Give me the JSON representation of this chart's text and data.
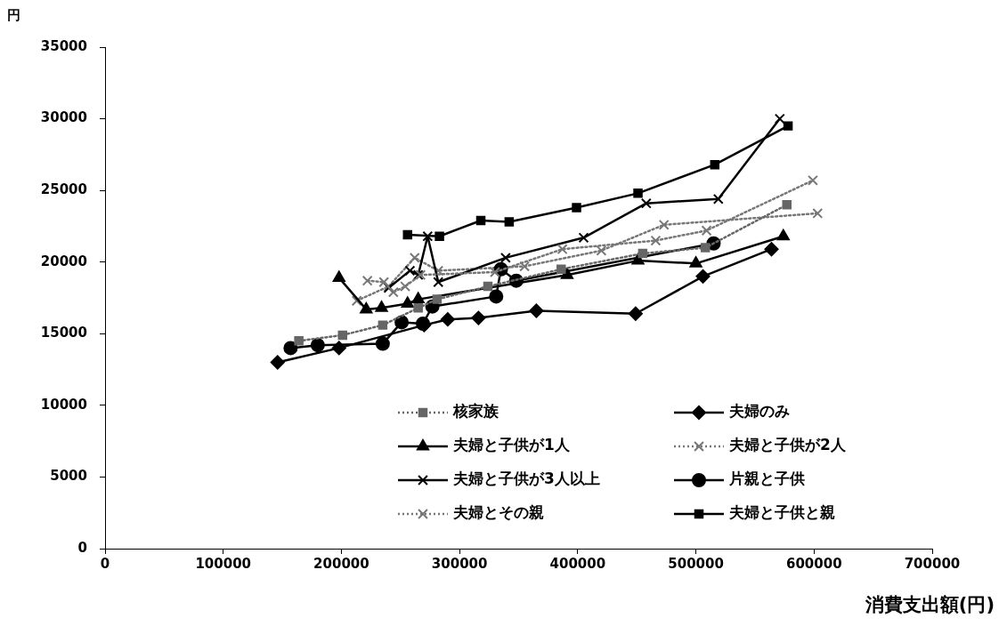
{
  "chart_data": {
    "type": "line",
    "xlabel": "消費支出額(円)",
    "ylabel": "円",
    "xlim": [
      0,
      700000
    ],
    "xticks": [
      0,
      100000,
      200000,
      300000,
      400000,
      500000,
      600000,
      700000
    ],
    "ylim": [
      0,
      35000
    ],
    "yticks": [
      0,
      5000,
      10000,
      15000,
      20000,
      25000,
      30000,
      35000
    ],
    "grid": false,
    "legend": "bottom right",
    "series": [
      {
        "name": "核家族",
        "color": "#666666",
        "marker": "square",
        "line_style": "dotted",
        "x": [
          164000,
          201000,
          235000,
          265000,
          281000,
          324000,
          386000,
          455000,
          508000,
          577000
        ],
        "values": [
          14500,
          14900,
          15600,
          16800,
          17400,
          18300,
          19500,
          20600,
          21000,
          24000
        ]
      },
      {
        "name": "夫婦のみ",
        "color": "#000000",
        "marker": "diamond",
        "line_style": "solid",
        "x": [
          146000,
          198000,
          270000,
          290000,
          316000,
          365000,
          449000,
          506000,
          564000
        ],
        "values": [
          13000,
          14000,
          15600,
          16000,
          16100,
          16600,
          16400,
          19000,
          20900
        ]
      },
      {
        "name": "夫婦と子供が1人",
        "color": "#000000",
        "marker": "triangle",
        "line_style": "solid",
        "x": [
          198000,
          221000,
          234000,
          256000,
          265000,
          391000,
          451000,
          500000,
          574000
        ],
        "values": [
          18900,
          16700,
          16800,
          17100,
          17400,
          19100,
          20100,
          19900,
          21800
        ]
      },
      {
        "name": "夫婦と子供が2人",
        "color": "#777777",
        "marker": "cross",
        "line_style": "dotted",
        "x": [
          222000,
          236000,
          244000,
          254000,
          267000,
          330000,
          387000,
          466000,
          509000,
          599000
        ],
        "values": [
          18700,
          18600,
          17900,
          18300,
          19100,
          19300,
          20900,
          21500,
          22200,
          25700
        ]
      },
      {
        "name": "夫婦と子供が3人以上",
        "color": "#000000",
        "marker": "cross",
        "line_style": "solid",
        "x": [
          240000,
          258000,
          265000,
          273000,
          282000,
          339000,
          405000,
          458000,
          519000,
          571000
        ],
        "values": [
          18200,
          19400,
          19100,
          21800,
          18600,
          20300,
          21700,
          24100,
          24400,
          30000
        ]
      },
      {
        "name": "片親と子供",
        "color": "#000000",
        "marker": "circle",
        "line_style": "solid",
        "x": [
          157000,
          180000,
          235000,
          251000,
          269000,
          277000,
          331000,
          335000,
          348000,
          515000
        ],
        "values": [
          14000,
          14200,
          14300,
          15800,
          15700,
          16900,
          17600,
          19500,
          18700,
          21300
        ]
      },
      {
        "name": "夫婦とその親",
        "color": "#777777",
        "marker": "cross",
        "line_style": "dotted",
        "x": [
          213000,
          240000,
          262000,
          282000,
          355000,
          420000,
          473000,
          603000
        ],
        "values": [
          17300,
          18300,
          20300,
          19400,
          19700,
          20800,
          22600,
          23400
        ]
      },
      {
        "name": "夫婦と子供と親",
        "color": "#000000",
        "marker": "square",
        "line_style": "solid",
        "x": [
          256000,
          283000,
          318000,
          342000,
          399000,
          451000,
          516000,
          578000
        ],
        "values": [
          21900,
          21800,
          22900,
          22800,
          23800,
          24800,
          26800,
          29500
        ]
      }
    ]
  }
}
